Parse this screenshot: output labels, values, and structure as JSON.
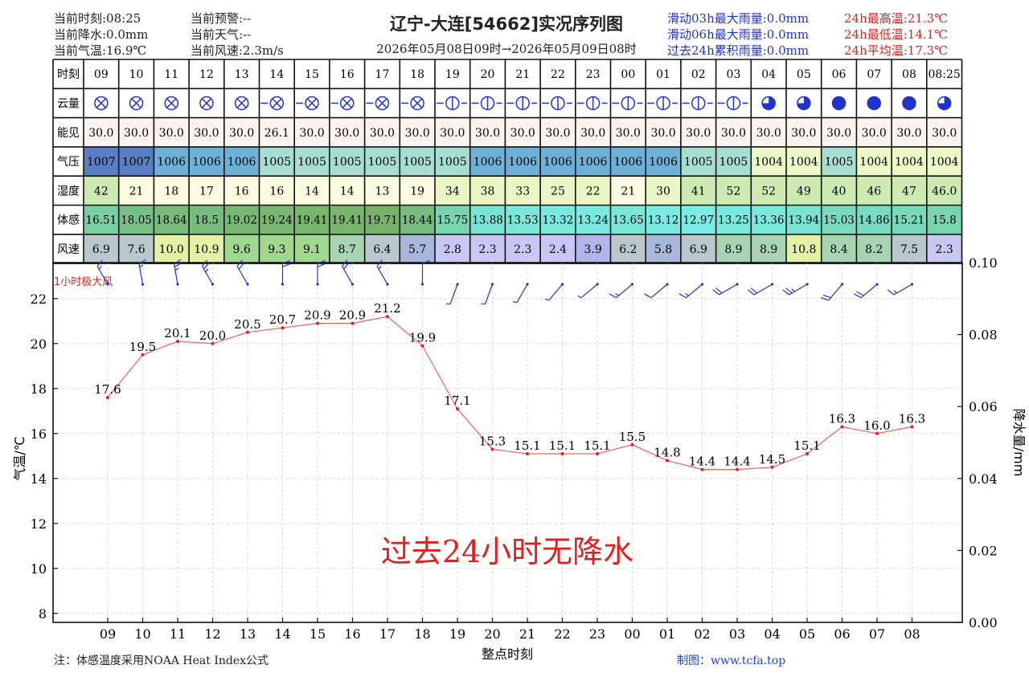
{
  "header": {
    "current_time": "当前时刻:08:25",
    "current_rain": "当前降水:0.0mm",
    "current_temp": "当前气温:16.9℃",
    "current_warning": "当前预警:--",
    "current_weather": "当前天气:--",
    "current_wind": "当前风速:2.3m/s",
    "title": "辽宁-大连[54662]实况序列图",
    "range": "2026年05月08日09时→2026年05月09日08时",
    "max_rain_3h": "滑动03h最大雨量:0.0mm",
    "max_rain_6h": "滑动06h最大雨量:0.0mm",
    "acc_rain_24h": "过去24h累积雨量:0.0mm",
    "max_temp": "24h最高温:21.3℃",
    "min_temp": "24h最低温:14.1℃",
    "avg_temp": "24h平均温:17.3℃"
  },
  "table": {
    "row_labels": [
      "时刻",
      "云量",
      "能见",
      "气压",
      "湿度",
      "体感",
      "风速"
    ],
    "hours": [
      "09",
      "10",
      "11",
      "12",
      "13",
      "14",
      "15",
      "16",
      "17",
      "18",
      "19",
      "20",
      "21",
      "22",
      "23",
      "00",
      "01",
      "02",
      "03",
      "04",
      "05",
      "06",
      "07",
      "08",
      "08:25"
    ],
    "visibility": [
      "30.0",
      "30.0",
      "30.0",
      "30.0",
      "30.0",
      "26.1",
      "30.0",
      "30.0",
      "30.0",
      "30.0",
      "30.0",
      "30.0",
      "30.0",
      "30.0",
      "30.0",
      "30.0",
      "30.0",
      "30.0",
      "30.0",
      "30.0",
      "30.0",
      "30.0",
      "30.0",
      "30.0",
      "30.0"
    ],
    "pressure": [
      "1007",
      "1007",
      "1006",
      "1006",
      "1006",
      "1005",
      "1005",
      "1005",
      "1005",
      "1005",
      "1005",
      "1006",
      "1006",
      "1006",
      "1006",
      "1006",
      "1006",
      "1005",
      "1005",
      "1004",
      "1004",
      "1005",
      "1004",
      "1004",
      "1004"
    ],
    "humidity": [
      "42",
      "21",
      "18",
      "17",
      "16",
      "16",
      "14",
      "14",
      "13",
      "19",
      "34",
      "38",
      "33",
      "25",
      "22",
      "21",
      "30",
      "41",
      "52",
      "52",
      "49",
      "40",
      "46",
      "47",
      "46.0"
    ],
    "feels_like": [
      "16.51",
      "18.05",
      "18.64",
      "18.5",
      "19.02",
      "19.24",
      "19.41",
      "19.41",
      "19.71",
      "18.44",
      "15.75",
      "13.88",
      "13.53",
      "13.32",
      "13.24",
      "13.65",
      "13.12",
      "12.97",
      "13.25",
      "13.36",
      "13.94",
      "15.03",
      "14.86",
      "15.21",
      "15.8"
    ],
    "wind_speed": [
      "6.9",
      "7.6",
      "10.0",
      "10.9",
      "9.6",
      "9.3",
      "9.1",
      "8.7",
      "6.4",
      "5.7",
      "2.8",
      "2.3",
      "2.3",
      "2.4",
      "3.9",
      "6.2",
      "5.8",
      "6.9",
      "8.9",
      "8.9",
      "10.8",
      "8.4",
      "8.2",
      "7.5",
      "2.3"
    ],
    "cloud_type": [
      "x",
      "x",
      "x",
      "x",
      "x",
      "x",
      "x",
      "x",
      "x",
      "x",
      "half",
      "half",
      "half",
      "half",
      "half",
      "half",
      "half",
      "half",
      "half",
      "q3",
      "q3",
      "full",
      "full",
      "full",
      "q3"
    ]
  },
  "colors": {
    "pressure": {
      "1007": "#5a7ec4",
      "1006": "#6fb0d6",
      "1005": "#a8ddd2",
      "1004": "#eef7c8"
    },
    "humidity_low": "#fbfbe2",
    "humidity_mid": "#eaf6c4",
    "humidity_high": "#cdeab2",
    "line": "#f06060",
    "barb": "#2233cc"
  },
  "chart_data": {
    "type": "line",
    "categories": [
      "09",
      "10",
      "11",
      "12",
      "13",
      "14",
      "15",
      "16",
      "17",
      "18",
      "19",
      "20",
      "21",
      "22",
      "23",
      "00",
      "01",
      "02",
      "03",
      "04",
      "05",
      "06",
      "07",
      "08"
    ],
    "values": [
      17.6,
      19.5,
      20.1,
      20.0,
      20.5,
      20.7,
      20.9,
      20.9,
      21.2,
      19.9,
      17.1,
      15.3,
      15.1,
      15.1,
      15.1,
      15.5,
      14.8,
      14.4,
      14.4,
      14.5,
      15.1,
      16.3,
      16.0,
      16.3
    ],
    "wind_dir_deg": [
      330,
      350,
      350,
      330,
      330,
      360,
      360,
      330,
      330,
      360,
      200,
      200,
      210,
      220,
      230,
      230,
      230,
      230,
      240,
      240,
      240,
      220,
      230,
      240
    ],
    "xlabel": "整点时刻",
    "ylabel": "气温/℃",
    "y2label": "降水量/mm",
    "ylim": [
      7.6,
      23.6
    ],
    "yticks": [
      8,
      10,
      12,
      14,
      16,
      18,
      20,
      22
    ],
    "y2ticks": [
      "0.00",
      "0.02",
      "0.04",
      "0.06",
      "0.08",
      "0.10"
    ],
    "annotation": "1小时极大风",
    "no_rain_text": "过去24小时无降水",
    "grid": true
  },
  "footer": {
    "note": "注：体感温度采用NOAA Heat Index公式",
    "credit": "制图：www.tcfa.top"
  }
}
